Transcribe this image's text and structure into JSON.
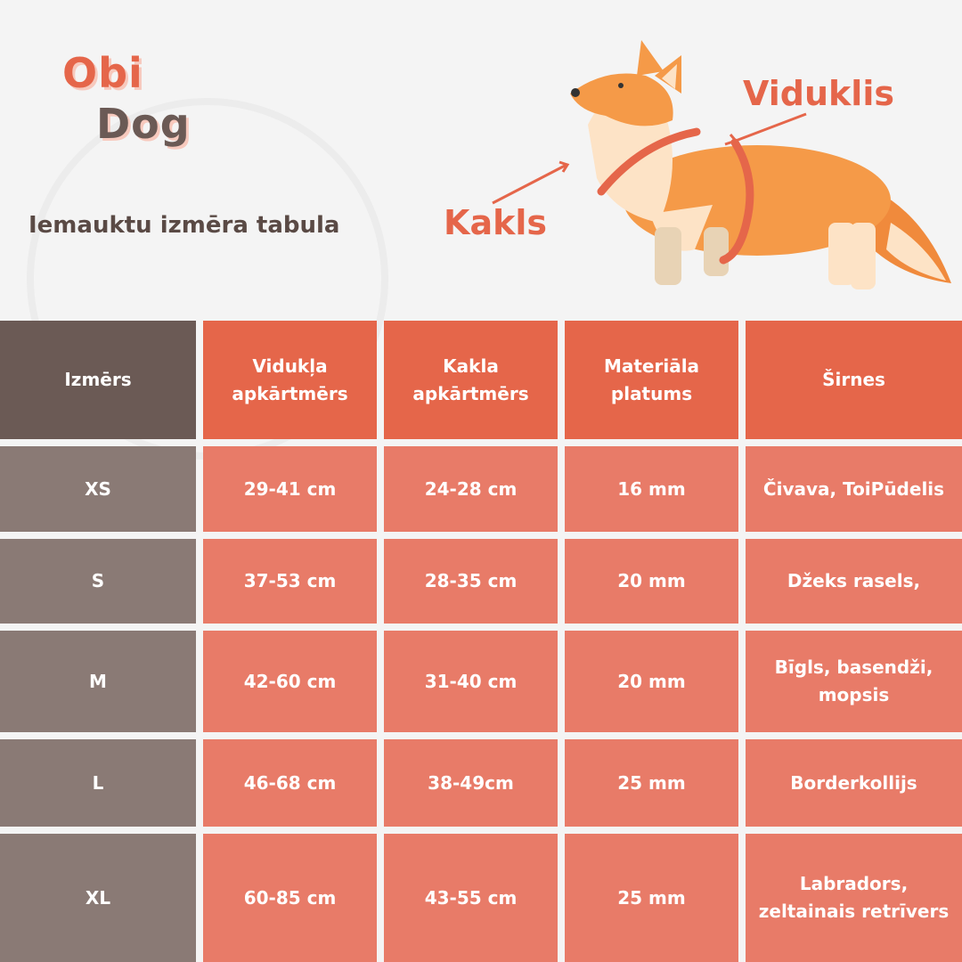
{
  "header": {
    "logo": [
      "Obi",
      "Dog"
    ],
    "subtitle": "Iemauktu izmēra tabula"
  },
  "labels": {
    "waist": "Viduklis",
    "neck": "Kakls"
  },
  "table": {
    "header": [
      "Izmērs",
      "Vidukļa apkārtmērs",
      "Kakla apkārtmērs",
      "Materiāla platums",
      "Širnes"
    ],
    "rows": [
      [
        "XS",
        "29-41 cm",
        "24-28 cm",
        "16 mm",
        "Čivava, ToiPūdelis"
      ],
      [
        "S",
        "37-53 cm",
        "28-35 cm",
        "20 mm",
        "Džeks rasels,"
      ],
      [
        "M",
        "42-60 cm",
        "31-40 cm",
        "20 mm",
        "Bīgls, basendži, mopsis"
      ],
      [
        "L",
        "46-68 cm",
        "38-49cm",
        "25 mm",
        "Borderkollijs"
      ],
      [
        "XL",
        "60-85 cm",
        "43-55 cm",
        "25 mm",
        "Labradors, zeltainais retrīvers"
      ]
    ]
  }
}
